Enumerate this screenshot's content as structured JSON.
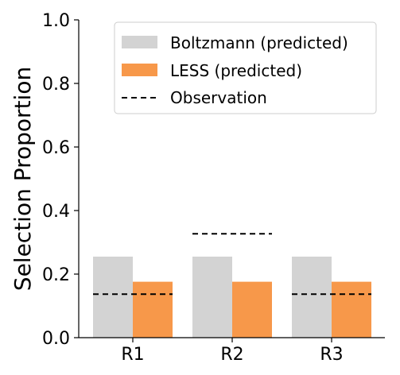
{
  "chart_data": {
    "type": "bar",
    "categories": [
      "R1",
      "R2",
      "R3"
    ],
    "series": [
      {
        "name": "Boltzmann (predicted)",
        "values": [
          0.255,
          0.255,
          0.255
        ],
        "color": "#d3d3d3"
      },
      {
        "name": "LESS (predicted)",
        "values": [
          0.176,
          0.176,
          0.176
        ],
        "color": "#f7984a"
      }
    ],
    "observation": {
      "name": "Observation",
      "values": [
        0.137,
        0.327,
        0.137
      ],
      "color": "#000000",
      "style": "dashed"
    },
    "ylabel": "Selection Proportion",
    "xlabel": "",
    "ylim": [
      0,
      1.0
    ],
    "yticks": [
      "0.0",
      "0.2",
      "0.4",
      "0.6",
      "0.8",
      "1.0"
    ],
    "grid": false,
    "legend": "top-right"
  }
}
